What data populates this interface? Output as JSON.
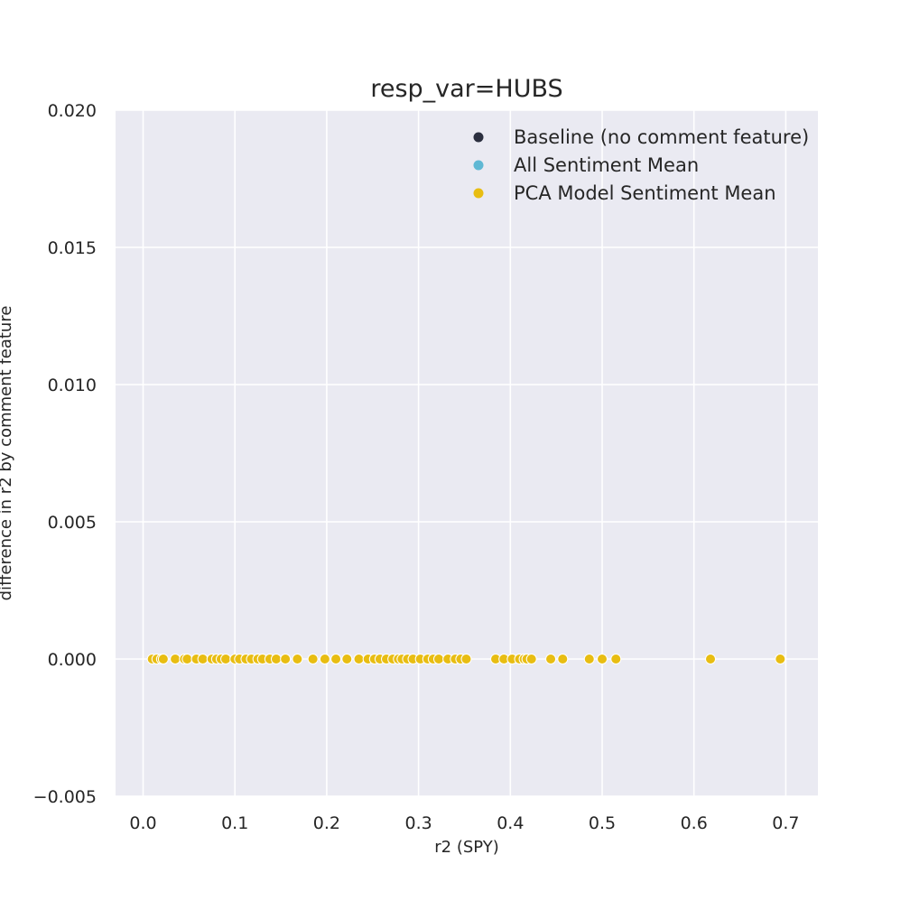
{
  "chart_data": {
    "type": "scatter",
    "title": "resp_var=HUBS",
    "xlabel": "r2 (SPY)",
    "ylabel": "difference in r2 by comment feature",
    "xlim": [
      -0.03,
      0.735
    ],
    "ylim": [
      -0.005,
      0.02
    ],
    "xticks": [
      0.0,
      0.1,
      0.2,
      0.3,
      0.4,
      0.5,
      0.6,
      0.7
    ],
    "xtick_labels": [
      "0.0",
      "0.1",
      "0.2",
      "0.3",
      "0.4",
      "0.5",
      "0.6",
      "0.7"
    ],
    "yticks": [
      -0.005,
      0.0,
      0.005,
      0.01,
      0.015,
      0.02
    ],
    "ytick_labels": [
      "−0.005",
      "0.000",
      "0.005",
      "0.010",
      "0.015",
      "0.020"
    ],
    "grid": true,
    "legend_position": "top-right",
    "series": [
      {
        "name": "Baseline (no comment feature)",
        "color": "#2b2f3f",
        "x": [],
        "y": []
      },
      {
        "name": "All Sentiment Mean",
        "color": "#5fb8d4",
        "x": [],
        "y": []
      },
      {
        "name": "PCA Model Sentiment Mean",
        "color": "#e8bd12",
        "x": [
          0.01,
          0.015,
          0.02,
          0.022,
          0.035,
          0.045,
          0.048,
          0.058,
          0.065,
          0.075,
          0.08,
          0.085,
          0.09,
          0.1,
          0.105,
          0.112,
          0.118,
          0.125,
          0.13,
          0.138,
          0.145,
          0.155,
          0.168,
          0.185,
          0.198,
          0.21,
          0.222,
          0.235,
          0.245,
          0.252,
          0.258,
          0.265,
          0.272,
          0.278,
          0.282,
          0.288,
          0.294,
          0.302,
          0.31,
          0.316,
          0.322,
          0.332,
          0.34,
          0.346,
          0.352,
          0.384,
          0.393,
          0.402,
          0.41,
          0.415,
          0.418,
          0.423,
          0.444,
          0.457,
          0.486,
          0.5,
          0.515,
          0.618,
          0.694
        ],
        "y": [
          0,
          0,
          0,
          0,
          0,
          0,
          0,
          0,
          0,
          0,
          0,
          0,
          0,
          0,
          0,
          0,
          0,
          0,
          0,
          0,
          0,
          0,
          0,
          0,
          0,
          0,
          0,
          0,
          0,
          0,
          0,
          0,
          0,
          0,
          0,
          0,
          0,
          0,
          0,
          0,
          0,
          0,
          0,
          0,
          0,
          0,
          0,
          0,
          0,
          0,
          0,
          0,
          0,
          0,
          0,
          0,
          0,
          0,
          0
        ]
      }
    ]
  }
}
